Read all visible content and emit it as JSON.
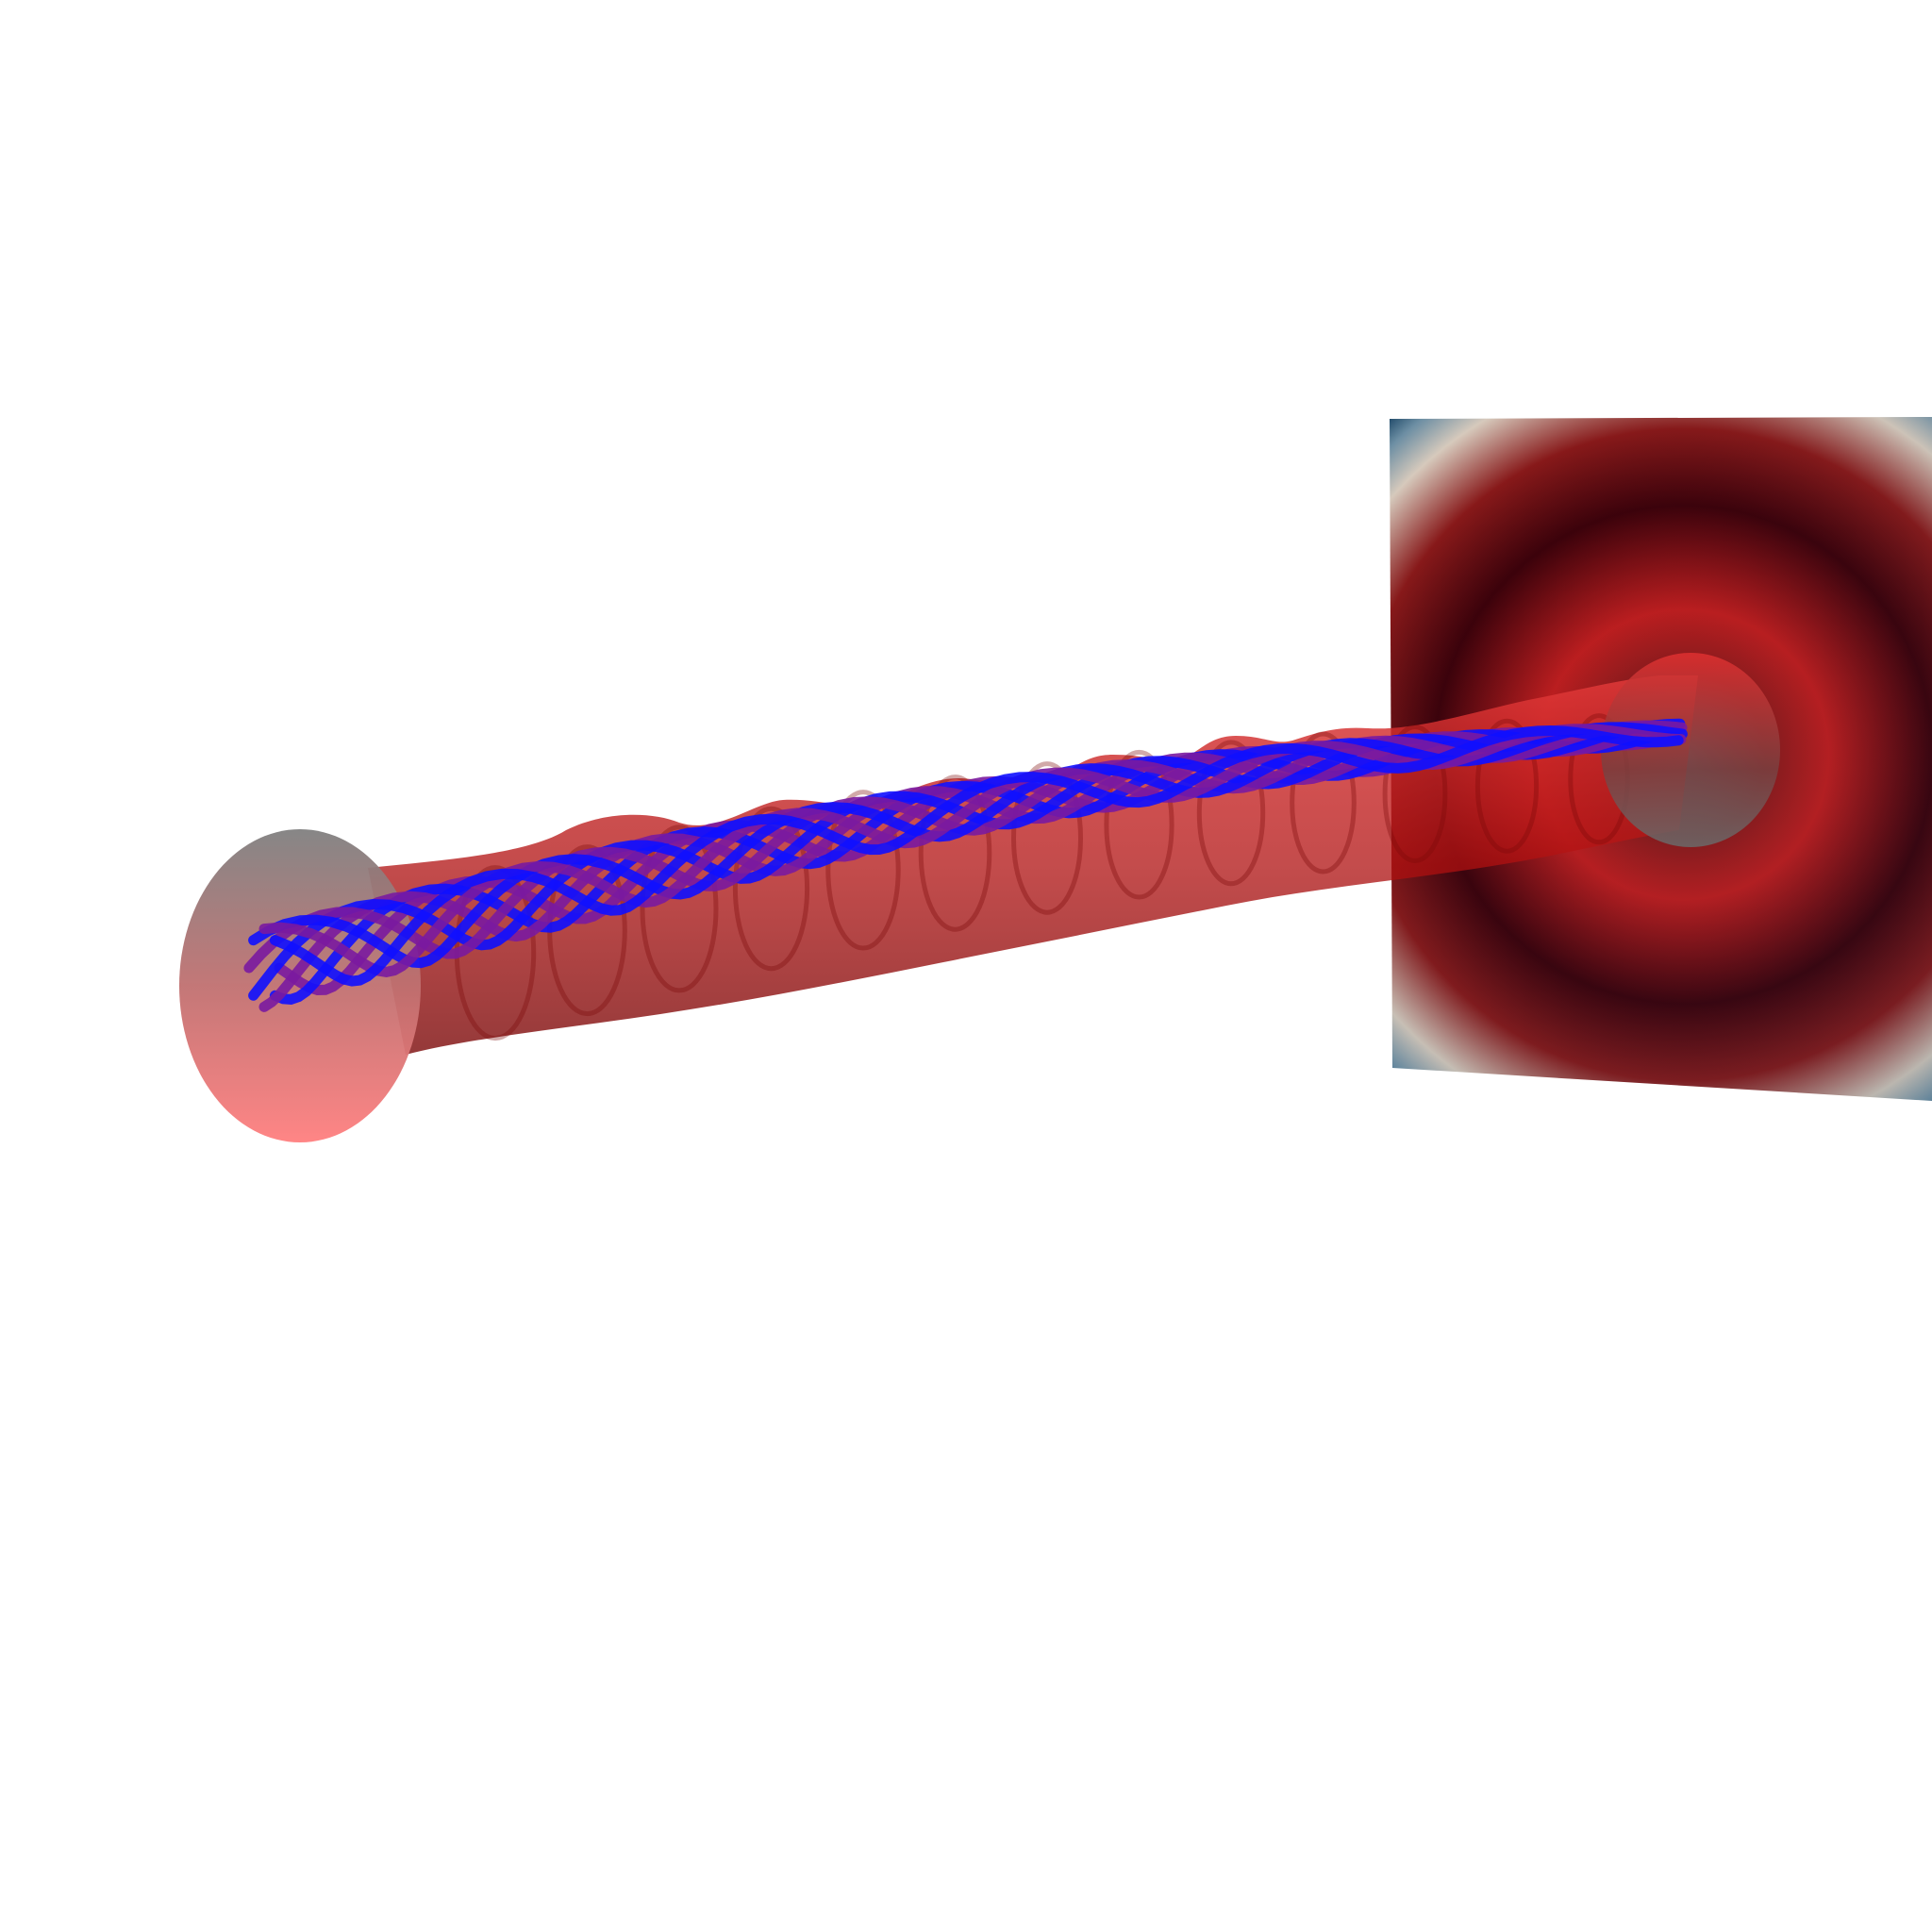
{
  "scene": {
    "background_color": "#ffffff",
    "tube_color": "#d62020",
    "tube_dark_color": "#7a0808",
    "end_cap_color": "#ff7f7f",
    "end_cap_dark_color": "#808080",
    "fiber_color": "#1010ff",
    "fiber_mid_color": "#7a1aa0",
    "screen_edge_color": "#0e3a5c",
    "screen_ring_light_color": "#c9c2b8",
    "screen_ring_dark_color": "#3a0006",
    "fiber_count": 8
  }
}
